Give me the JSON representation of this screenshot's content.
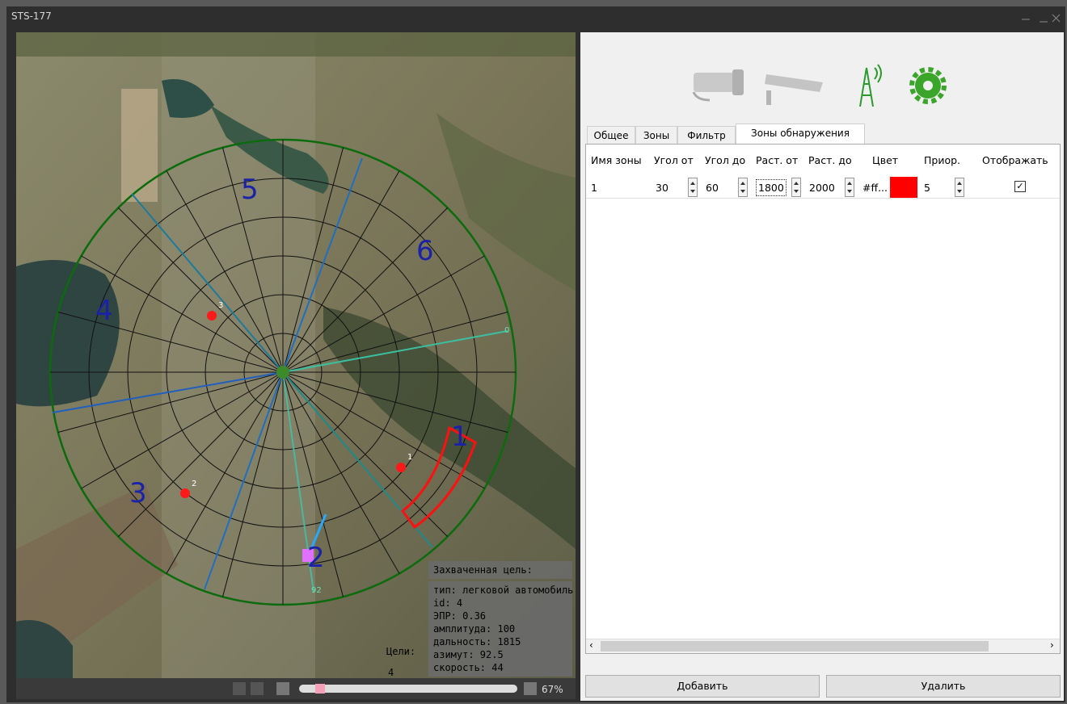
{
  "window": {
    "title": "STS-177"
  },
  "map": {
    "zones": [
      "1",
      "2",
      "3",
      "4",
      "5",
      "6"
    ],
    "targets": [
      "1",
      "2",
      "3"
    ],
    "marks": [
      "0",
      "92"
    ],
    "info": {
      "header": "Захваченная цель:",
      "lines": [
        "тип: легковой автомобиль",
        "id: 4",
        "ЭПР: 0.36",
        "амплитуда: 100",
        "дальность: 1815",
        "азимут: 92.5",
        "скорость: 44"
      ]
    },
    "targets_label": "Цели:",
    "targets_count": "4",
    "zoom": "67%"
  },
  "panel": {
    "tabs": [
      "Общее",
      "Зоны",
      "Фильтр",
      "Зоны обнаружения"
    ],
    "table": {
      "headers": [
        "Имя зоны",
        "Угол от",
        "Угол до",
        "Раст. от",
        "Раст. до",
        "Цвет",
        "Приор.",
        "Отображать"
      ],
      "rows": [
        [
          "1",
          "30",
          "60",
          "1800",
          "2000",
          "#ff...",
          "5"
        ]
      ]
    },
    "buttons": [
      "Добавить",
      "Удалить"
    ]
  }
}
